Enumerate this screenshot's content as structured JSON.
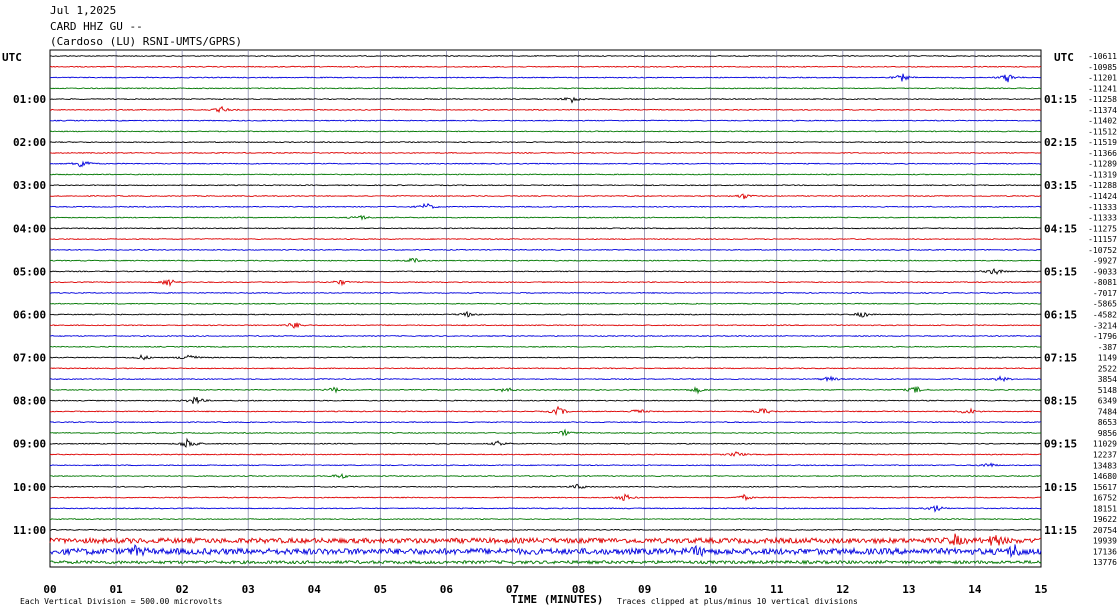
{
  "header": {
    "date": "Jul 1,2025",
    "station": "CARD HHZ GU --",
    "network": "(Cardoso (LU) RSNI-UMTS/GPRS)"
  },
  "chart_data": {
    "type": "line",
    "title": "Jul 1,2025",
    "xlabel": "TIME (MINUTES)",
    "x_ticks": [
      "00",
      "01",
      "02",
      "03",
      "04",
      "05",
      "06",
      "07",
      "08",
      "09",
      "10",
      "11",
      "12",
      "13",
      "14",
      "15"
    ],
    "xlim": [
      0,
      15
    ],
    "left_corner_label": "UTC",
    "right_corner_label": "UTC",
    "left_hour_labels": [
      "01:00",
      "02:00",
      "03:00",
      "04:00",
      "05:00",
      "06:00",
      "07:00",
      "08:00",
      "09:00",
      "10:00",
      "11:00"
    ],
    "right_hour_labels": [
      "01:15",
      "02:15",
      "03:15",
      "04:15",
      "05:15",
      "06:15",
      "07:15",
      "08:15",
      "09:15",
      "10:15",
      "11:15"
    ],
    "trace_colors": [
      "#000000",
      "#dd0000",
      "#0000dd",
      "#007700"
    ],
    "grid": true,
    "trace_offsets": [
      "-10611",
      "-10985",
      "-11201",
      "-11241",
      "-11258",
      "-11374",
      "-11402",
      "-11512",
      "-11519",
      "-11366",
      "-11289",
      "-11319",
      "-11288",
      "-11424",
      "-11333",
      "-11333",
      "-11275",
      "-11157",
      "-10752",
      "-9927",
      "-9033",
      "-8081",
      "-7017",
      "-5865",
      "-4582",
      "-3214",
      "-1796",
      "-387",
      "1149",
      "2522",
      "3854",
      "5148",
      "6349",
      "7484",
      "8653",
      "9856",
      "11029",
      "12237",
      "13483",
      "14680",
      "15617",
      "16752",
      "18151",
      "19622",
      "20754",
      "19939",
      "17136",
      "13776"
    ],
    "events": [
      {
        "trace": 2,
        "minute": 12.9,
        "amp": 4
      },
      {
        "trace": 2,
        "minute": 14.5,
        "amp": 5
      },
      {
        "trace": 4,
        "minute": 7.9,
        "amp": 4
      },
      {
        "trace": 5,
        "minute": 2.6,
        "amp": 3
      },
      {
        "trace": 10,
        "minute": 0.5,
        "amp": 6
      },
      {
        "trace": 13,
        "minute": 10.5,
        "amp": 3
      },
      {
        "trace": 14,
        "minute": 5.7,
        "amp": 4
      },
      {
        "trace": 15,
        "minute": 4.7,
        "amp": 3
      },
      {
        "trace": 19,
        "minute": 5.5,
        "amp": 3
      },
      {
        "trace": 20,
        "minute": 14.3,
        "amp": 4
      },
      {
        "trace": 21,
        "minute": 1.8,
        "amp": 5
      },
      {
        "trace": 21,
        "minute": 4.4,
        "amp": 3
      },
      {
        "trace": 24,
        "minute": 6.3,
        "amp": 3
      },
      {
        "trace": 24,
        "minute": 12.3,
        "amp": 3
      },
      {
        "trace": 25,
        "minute": 3.7,
        "amp": 4
      },
      {
        "trace": 28,
        "minute": 1.4,
        "amp": 3
      },
      {
        "trace": 28,
        "minute": 2.1,
        "amp": 5
      },
      {
        "trace": 30,
        "minute": 11.8,
        "amp": 3
      },
      {
        "trace": 30,
        "minute": 14.4,
        "amp": 3
      },
      {
        "trace": 31,
        "minute": 4.3,
        "amp": 3
      },
      {
        "trace": 31,
        "minute": 6.9,
        "amp": 3
      },
      {
        "trace": 31,
        "minute": 9.8,
        "amp": 3
      },
      {
        "trace": 31,
        "minute": 13.1,
        "amp": 4
      },
      {
        "trace": 32,
        "minute": 2.2,
        "amp": 5
      },
      {
        "trace": 33,
        "minute": 7.7,
        "amp": 5
      },
      {
        "trace": 33,
        "minute": 8.9,
        "amp": 3
      },
      {
        "trace": 33,
        "minute": 10.8,
        "amp": 4
      },
      {
        "trace": 33,
        "minute": 13.9,
        "amp": 4
      },
      {
        "trace": 35,
        "minute": 7.8,
        "amp": 3
      },
      {
        "trace": 36,
        "minute": 2.1,
        "amp": 7
      },
      {
        "trace": 36,
        "minute": 6.8,
        "amp": 3
      },
      {
        "trace": 37,
        "minute": 10.4,
        "amp": 3
      },
      {
        "trace": 38,
        "minute": 14.2,
        "amp": 3
      },
      {
        "trace": 39,
        "minute": 4.4,
        "amp": 3
      },
      {
        "trace": 40,
        "minute": 8.0,
        "amp": 3
      },
      {
        "trace": 41,
        "minute": 8.7,
        "amp": 4
      },
      {
        "trace": 41,
        "minute": 10.5,
        "amp": 3
      },
      {
        "trace": 42,
        "minute": 13.4,
        "amp": 4
      },
      {
        "trace": 45,
        "minute": 13.7,
        "amp": 5
      },
      {
        "trace": 45,
        "minute": 14.3,
        "amp": 6
      },
      {
        "trace": 46,
        "minute": 1.3,
        "amp": 4
      },
      {
        "trace": 46,
        "minute": 9.8,
        "amp": 4
      },
      {
        "trace": 46,
        "minute": 14.6,
        "amp": 6
      }
    ],
    "noisy_traces": [
      {
        "trace": 45,
        "level": 2.5
      },
      {
        "trace": 46,
        "level": 3.0
      },
      {
        "trace": 47,
        "level": 1.5
      }
    ]
  },
  "footer": {
    "scale_note": "Each Vertical Division =  500.00 microvolts",
    "clip_note": "Traces clipped at plus/minus 10 vertical divisions"
  }
}
